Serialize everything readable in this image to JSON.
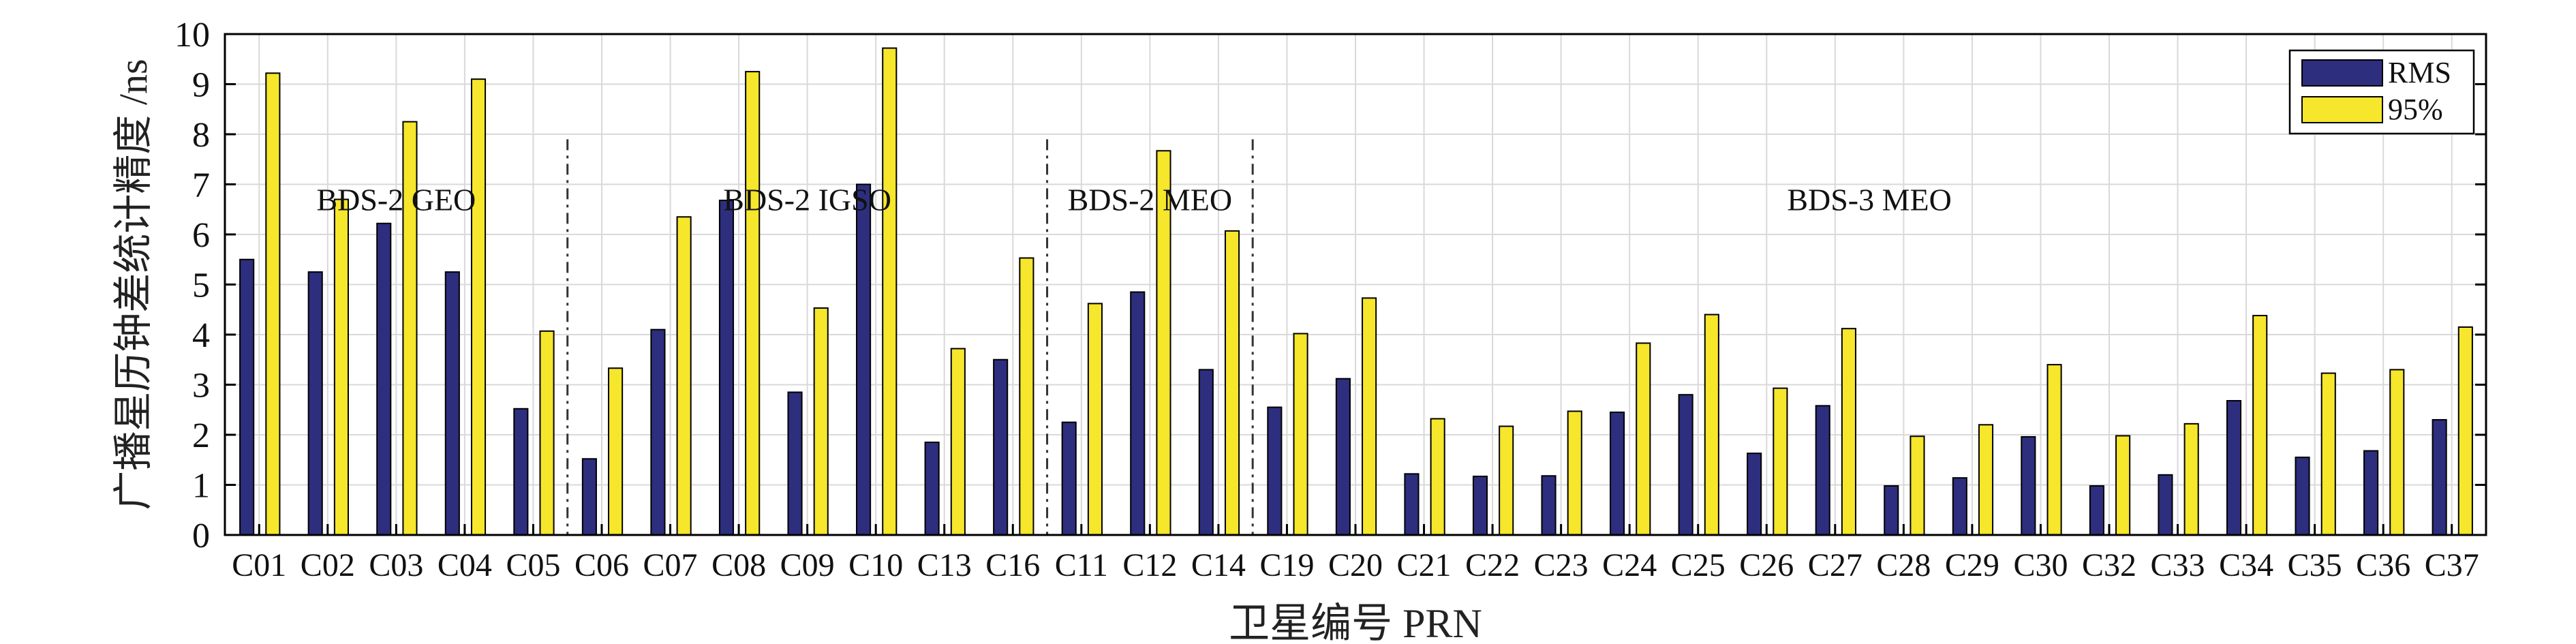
{
  "chart_data": {
    "type": "bar",
    "ylabel": "广播星历钟差统计精度 /ns",
    "xlabel": "卫星编号 PRN",
    "ylim": [
      0,
      10
    ],
    "yticks": [
      "0",
      "1",
      "2",
      "3",
      "4",
      "5",
      "6",
      "7",
      "8",
      "9",
      "10"
    ],
    "grid": true,
    "legend_position": "top-right",
    "categories": [
      "C01",
      "C02",
      "C03",
      "C04",
      "C05",
      "C06",
      "C07",
      "C08",
      "C09",
      "C10",
      "C13",
      "C16",
      "C11",
      "C12",
      "C14",
      "C19",
      "C20",
      "C21",
      "C22",
      "C23",
      "C24",
      "C25",
      "C26",
      "C27",
      "C28",
      "C29",
      "C30",
      "C32",
      "C33",
      "C34",
      "C35",
      "C36",
      "C37"
    ],
    "series": [
      {
        "name": "RMS",
        "color": "#2e2e7e",
        "values": [
          5.5,
          5.25,
          6.22,
          5.25,
          2.52,
          1.52,
          4.1,
          6.68,
          2.85,
          7.0,
          1.85,
          3.5,
          2.25,
          4.85,
          3.3,
          2.55,
          3.12,
          1.22,
          1.17,
          1.18,
          2.45,
          2.8,
          1.63,
          2.58,
          0.98,
          1.14,
          1.96,
          0.98,
          1.2,
          2.68,
          1.55,
          1.68,
          2.3
        ]
      },
      {
        "name": "95%",
        "color": "#f6e62c",
        "values": [
          9.22,
          6.7,
          8.25,
          9.1,
          4.07,
          3.33,
          6.35,
          9.25,
          4.53,
          9.72,
          3.72,
          5.53,
          4.62,
          7.67,
          6.07,
          4.02,
          4.73,
          2.32,
          2.17,
          2.47,
          3.83,
          4.4,
          2.93,
          4.12,
          1.97,
          2.2,
          3.4,
          1.98,
          2.22,
          4.38,
          3.23,
          3.3,
          4.15
        ]
      }
    ],
    "groups": [
      {
        "label": "BDS-2 GEO",
        "start": 0,
        "end": 4
      },
      {
        "label": "BDS-2 IGSO",
        "start": 5,
        "end": 11
      },
      {
        "label": "BDS-2 MEO",
        "start": 12,
        "end": 14
      },
      {
        "label": "BDS-3 MEO",
        "start": 15,
        "end": 32
      }
    ],
    "group_label_y": 6.7
  }
}
